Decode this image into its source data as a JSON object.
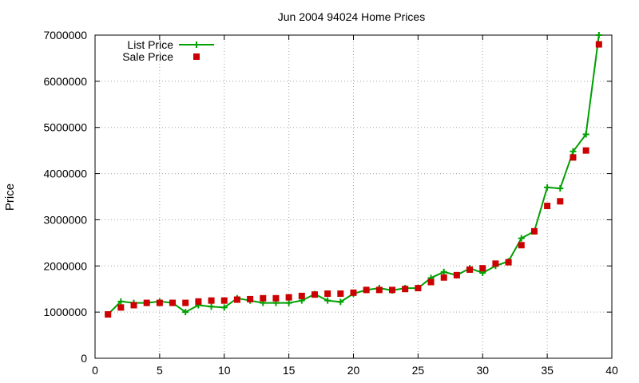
{
  "chart_data": {
    "type": "line",
    "title": "Jun 2004 94024 Home Prices",
    "xlabel": "",
    "ylabel": "Price",
    "xlim": [
      0,
      40
    ],
    "ylim": [
      0,
      7000000
    ],
    "xticks": [
      0,
      5,
      10,
      15,
      20,
      25,
      30,
      35,
      40
    ],
    "yticks": [
      0,
      1000000,
      2000000,
      3000000,
      4000000,
      5000000,
      6000000,
      7000000
    ],
    "grid": true,
    "legend_position": "top-left",
    "series": [
      {
        "name": "List Price",
        "style": "line+cross",
        "color": "#00a000",
        "x": [
          1,
          2,
          3,
          4,
          5,
          6,
          7,
          8,
          9,
          10,
          11,
          12,
          13,
          14,
          15,
          16,
          17,
          18,
          19,
          20,
          21,
          22,
          23,
          24,
          25,
          26,
          27,
          28,
          29,
          30,
          31,
          32,
          33,
          34,
          35,
          36,
          37,
          38,
          39
        ],
        "y": [
          950000,
          1230000,
          1200000,
          1200000,
          1230000,
          1200000,
          1000000,
          1150000,
          1120000,
          1100000,
          1300000,
          1250000,
          1200000,
          1200000,
          1200000,
          1250000,
          1390000,
          1250000,
          1220000,
          1400000,
          1480000,
          1520000,
          1470000,
          1520000,
          1520000,
          1740000,
          1870000,
          1800000,
          1950000,
          1850000,
          2000000,
          2100000,
          2600000,
          2750000,
          3700000,
          3680000,
          4480000,
          4850000,
          7000000
        ]
      },
      {
        "name": "Sale Price",
        "style": "square",
        "color": "#cc0000",
        "x": [
          1,
          2,
          3,
          4,
          5,
          6,
          7,
          8,
          9,
          10,
          11,
          12,
          13,
          14,
          15,
          16,
          17,
          18,
          19,
          20,
          21,
          22,
          23,
          24,
          25,
          26,
          27,
          28,
          29,
          30,
          31,
          32,
          33,
          34,
          35,
          36,
          37,
          38,
          39
        ],
        "y": [
          950000,
          1100000,
          1150000,
          1200000,
          1200000,
          1200000,
          1200000,
          1230000,
          1250000,
          1250000,
          1270000,
          1280000,
          1300000,
          1300000,
          1320000,
          1350000,
          1380000,
          1400000,
          1400000,
          1420000,
          1480000,
          1480000,
          1480000,
          1500000,
          1520000,
          1650000,
          1750000,
          1800000,
          1920000,
          1950000,
          2050000,
          2080000,
          2450000,
          2750000,
          3300000,
          3400000,
          4350000,
          4500000,
          6800000
        ]
      }
    ]
  }
}
